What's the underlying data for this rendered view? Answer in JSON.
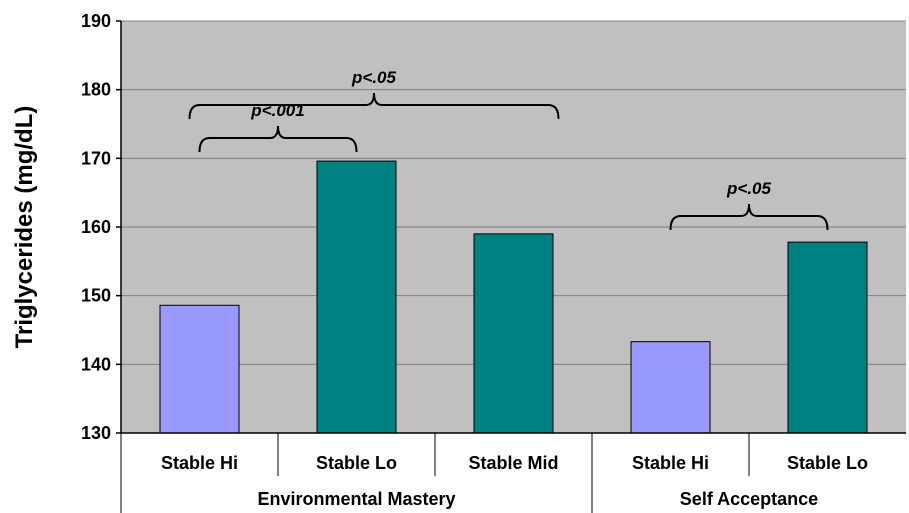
{
  "chart_data": {
    "type": "bar",
    "ylabel": "Triglycerides (mg/dL)",
    "ylim": [
      130,
      190
    ],
    "yticks": [
      130,
      140,
      150,
      160,
      170,
      180,
      190
    ],
    "grid": true,
    "groups": [
      {
        "name": "Environmental Mastery",
        "categories": [
          "Stable Hi",
          "Stable Lo",
          "Stable Mid"
        ],
        "values": [
          148.6,
          169.6,
          159.0
        ]
      },
      {
        "name": "Self Acceptance",
        "categories": [
          "Stable Hi",
          "Stable Lo"
        ],
        "values": [
          143.3,
          157.8
        ]
      }
    ],
    "annotations": [
      {
        "label": "p<.001",
        "group": 0,
        "from": 0,
        "to": 1
      },
      {
        "label": "p<.05",
        "group": 0,
        "from": 0,
        "to": 2
      },
      {
        "label": "p<.05",
        "group": 1,
        "from": 0,
        "to": 1
      }
    ]
  },
  "colors": {
    "plot_bg": "#c0c0c0",
    "stable_hi": "#9999ff",
    "stable_lo_mid": "#008080",
    "gridline": "#808080"
  }
}
